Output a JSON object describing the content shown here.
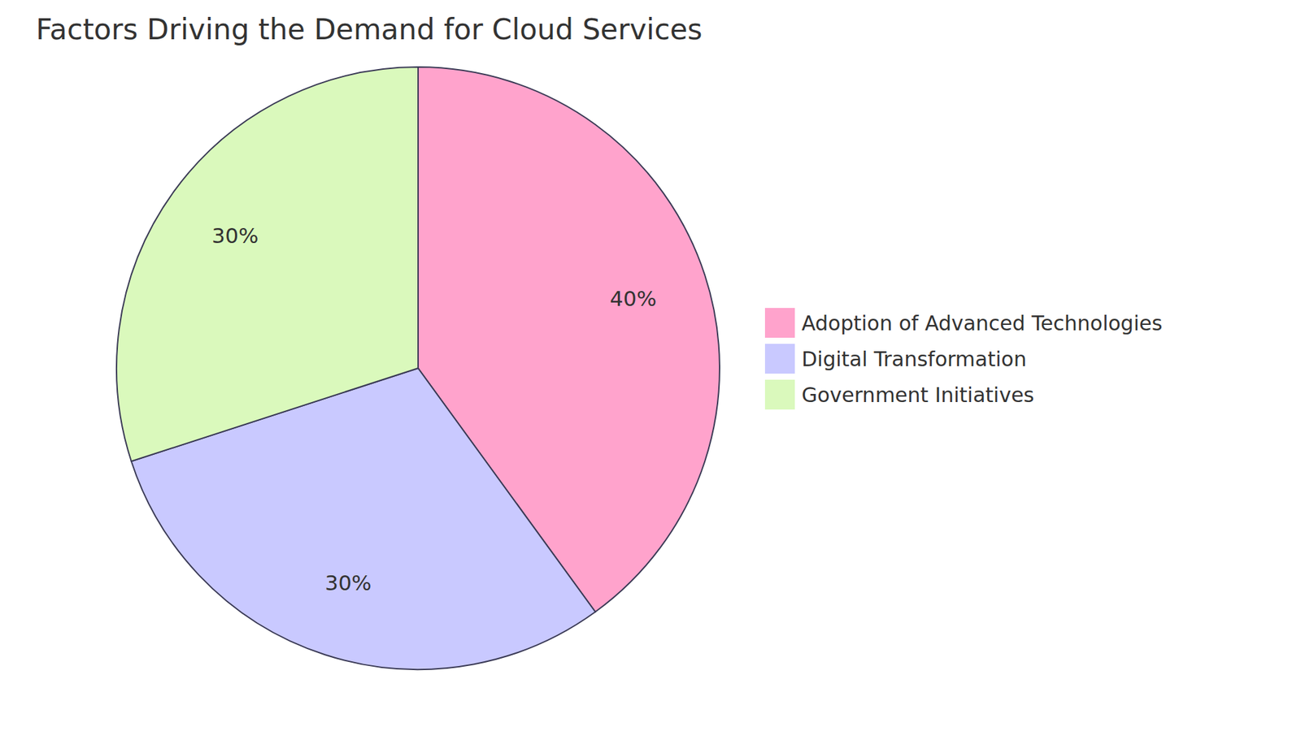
{
  "chart_data": {
    "type": "pie",
    "title": "Factors Driving the Demand for Cloud Services",
    "categories": [
      "Adoption of Advanced Technologies",
      "Digital Transformation",
      "Government Initiatives"
    ],
    "values": [
      40,
      30,
      30
    ],
    "value_labels": [
      "40%",
      "30%",
      "30%"
    ],
    "colors": [
      "#ffa3cc",
      "#c9c9ff",
      "#daf9bc"
    ],
    "data_labels": true,
    "legend": "right"
  }
}
